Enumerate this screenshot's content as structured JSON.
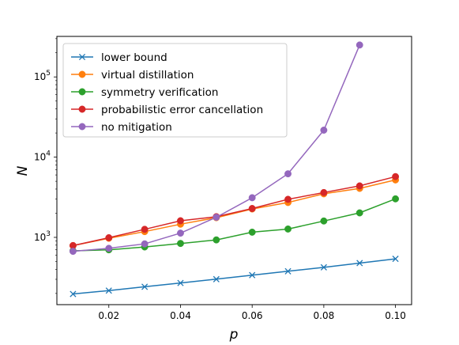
{
  "chart_data": {
    "type": "line",
    "title": "",
    "xlabel": "p",
    "ylabel": "N",
    "yscale": "log",
    "xlim": [
      0.0055,
      0.1045
    ],
    "ylim": [
      145,
      320000
    ],
    "xticks": [
      0.02,
      0.04,
      0.06,
      0.08,
      0.1
    ],
    "xtick_labels": [
      "0.02",
      "0.04",
      "0.06",
      "0.08",
      "0.10"
    ],
    "yticks": [
      1000,
      10000,
      100000
    ],
    "ytick_labels": [
      {
        "base": "10",
        "exp": "3"
      },
      {
        "base": "10",
        "exp": "4"
      },
      {
        "base": "10",
        "exp": "5"
      }
    ],
    "grid": false,
    "legend_position": "top-left",
    "x": [
      0.01,
      0.02,
      0.03,
      0.04,
      0.05,
      0.06,
      0.07,
      0.08,
      0.09,
      0.1
    ],
    "series": [
      {
        "name": "lower bound",
        "color": "#1f77b4",
        "marker": "x",
        "values": [
          197,
          217,
          242,
          270,
          301,
          338,
          378,
          423,
          478,
          540
        ]
      },
      {
        "name": "virtual distillation",
        "color": "#ff7f0e",
        "marker": "o",
        "values": [
          790,
          975,
          1180,
          1460,
          1760,
          2260,
          2720,
          3490,
          4080,
          5200
        ]
      },
      {
        "name": "symmetry verification",
        "color": "#2ca02c",
        "marker": "o",
        "values": [
          680,
          700,
          760,
          840,
          930,
          1160,
          1270,
          1600,
          2020,
          3020
        ]
      },
      {
        "name": "probabilistic error cancellation",
        "color": "#d62728",
        "marker": "o",
        "values": [
          790,
          990,
          1260,
          1610,
          1810,
          2290,
          2980,
          3620,
          4380,
          5720
        ]
      },
      {
        "name": "no mitigation",
        "color": "#9467bd",
        "marker": "o",
        "values": [
          670,
          730,
          830,
          1130,
          1780,
          3120,
          6200,
          21700,
          250000,
          null
        ]
      }
    ]
  }
}
